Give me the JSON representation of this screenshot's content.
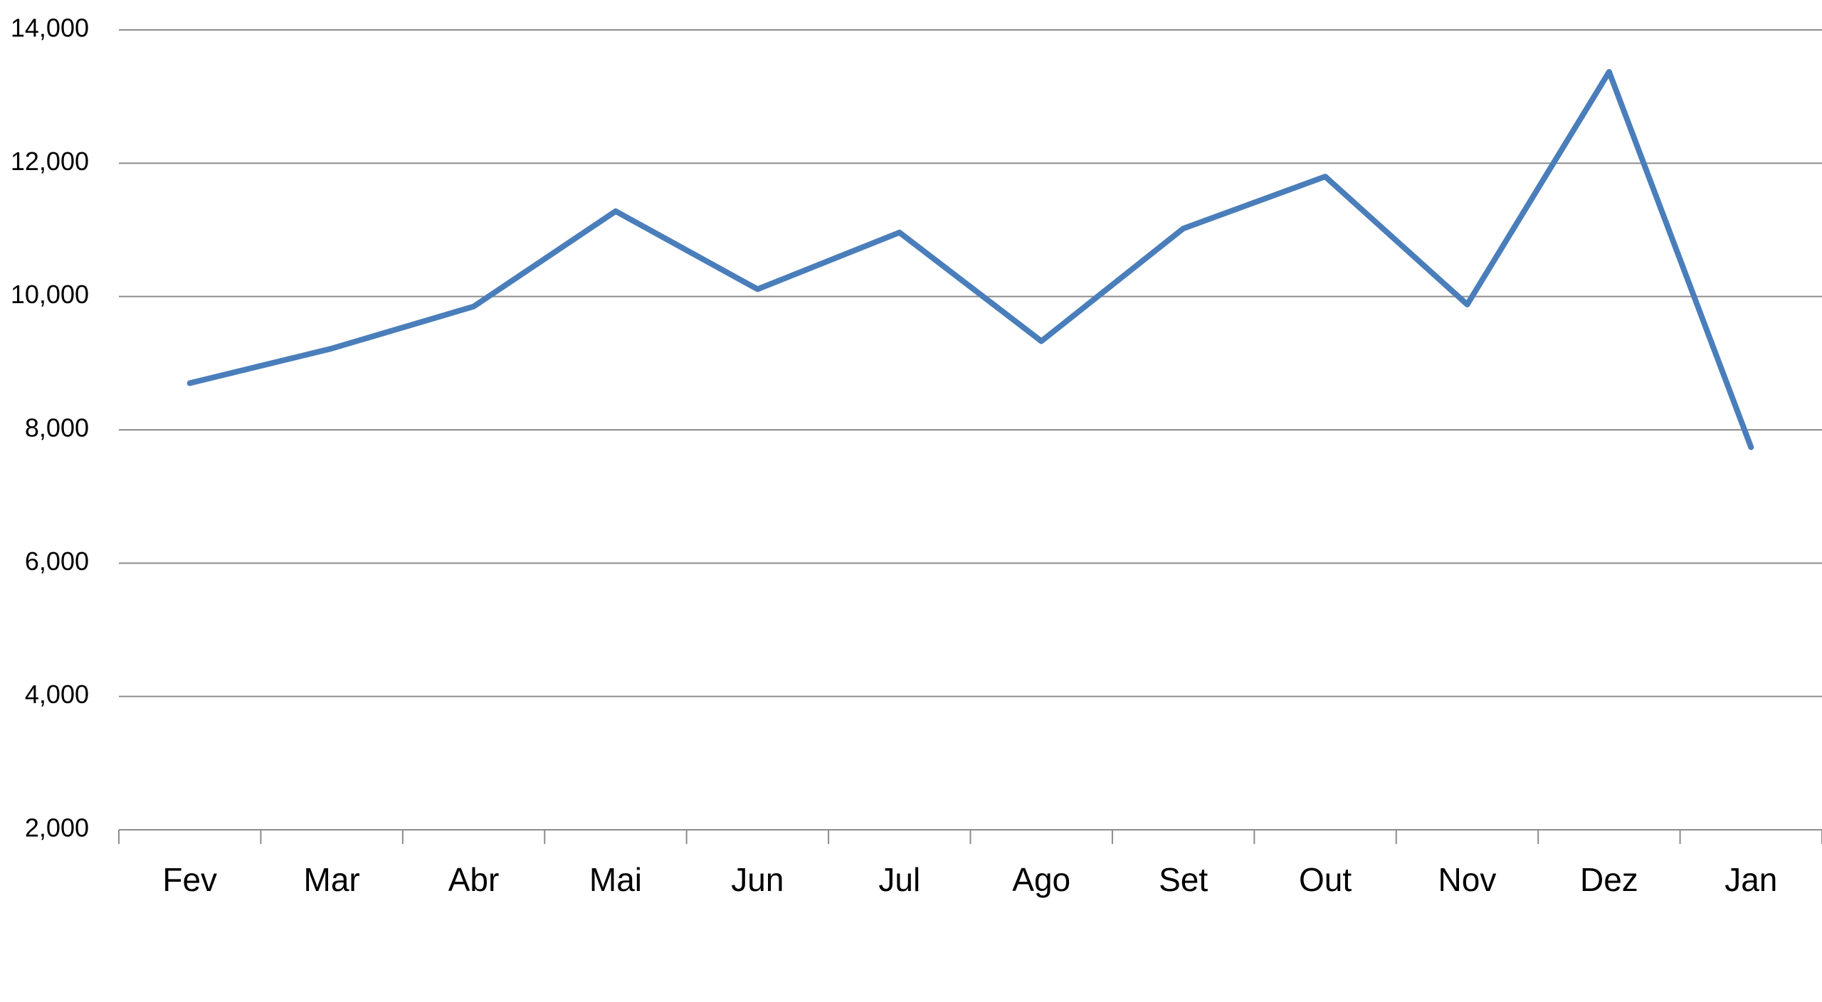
{
  "chart_data": {
    "type": "line",
    "categories": [
      "Fev",
      "Mar",
      "Abr",
      "Mai",
      "Jun",
      "Jul",
      "Ago",
      "Set",
      "Out",
      "Nov",
      "Dez",
      "Jan"
    ],
    "series": [
      {
        "color": "#4a7ebb",
        "values": [
          8700,
          9220,
          9850,
          11280,
          10110,
          10960,
          9330,
          11020,
          11800,
          9880,
          13370,
          7740
        ]
      }
    ],
    "ylim": [
      2000,
      14000
    ],
    "yticks": [
      {
        "value": 2000,
        "label": "2,000"
      },
      {
        "value": 4000,
        "label": "4,000"
      },
      {
        "value": 6000,
        "label": "6,000"
      },
      {
        "value": 8000,
        "label": "8,000"
      },
      {
        "value": 10000,
        "label": "10,000"
      },
      {
        "value": 12000,
        "label": "12,000"
      },
      {
        "value": 14000,
        "label": "14,000"
      }
    ],
    "grid": true
  }
}
